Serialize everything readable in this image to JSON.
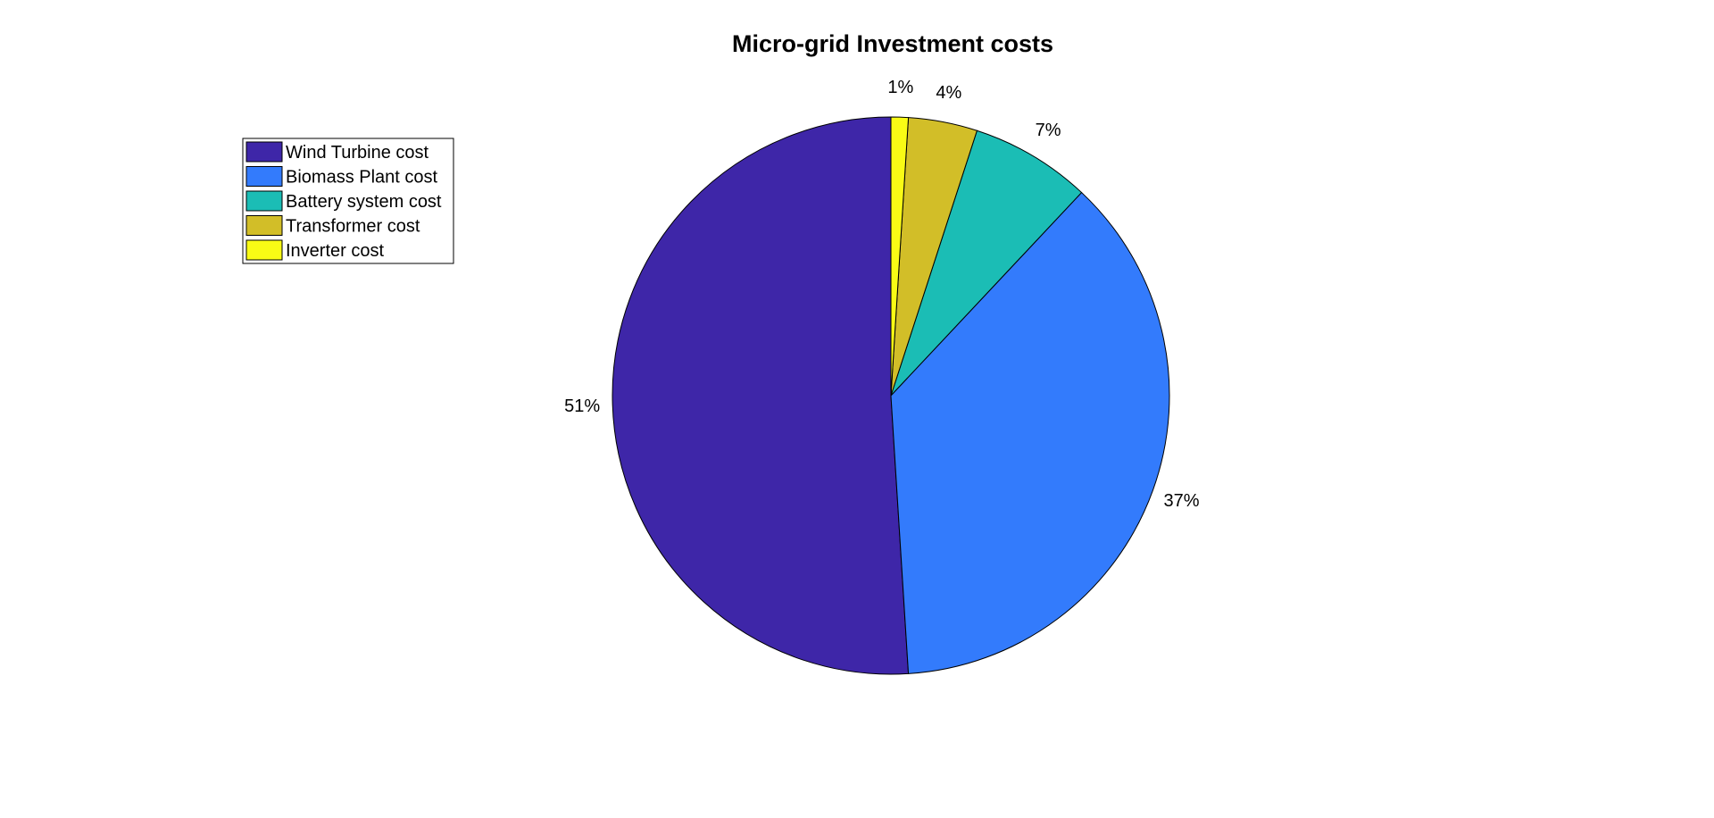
{
  "chart_data": {
    "type": "pie",
    "title": "Micro-grid Investment costs",
    "legend_position": "top-left",
    "slices": [
      {
        "label": "Wind Turbine cost",
        "value": 51,
        "percent_label": "51%",
        "color": "#3E26A8"
      },
      {
        "label": "Biomass Plant cost",
        "value": 37,
        "percent_label": "37%",
        "color": "#337BFC"
      },
      {
        "label": "Battery system cost",
        "value": 7,
        "percent_label": "7%",
        "color": "#1BBDB5"
      },
      {
        "label": "Transformer cost",
        "value": 4,
        "percent_label": "4%",
        "color": "#D2BE28"
      },
      {
        "label": "Inverter cost",
        "value": 1,
        "percent_label": "1%",
        "color": "#F9FB15"
      }
    ]
  }
}
